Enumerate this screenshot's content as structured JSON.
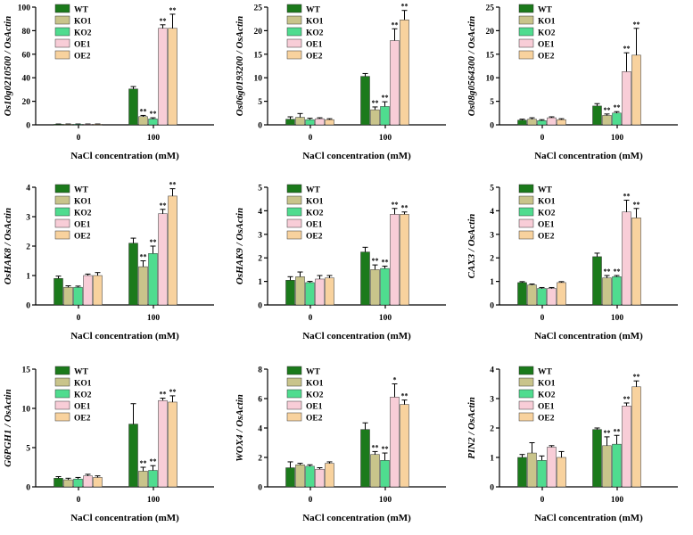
{
  "series_styles": [
    {
      "name": "WT",
      "color": "#1b7a1b"
    },
    {
      "name": "KO1",
      "color": "#c9c48b"
    },
    {
      "name": "KO2",
      "color": "#4fdc8f"
    },
    {
      "name": "OE1",
      "color": "#f8cdd7"
    },
    {
      "name": "OE2",
      "color": "#f8d29e"
    }
  ],
  "chart_data": [
    {
      "type": "bar",
      "ylabel": "Os10g0210500 / OsActin",
      "xlabel": "NaCl concentration (mM)",
      "categories": [
        "0",
        "100"
      ],
      "ylim": [
        0,
        100
      ],
      "yticks": [
        0,
        20,
        40,
        60,
        80,
        100
      ],
      "legend": [
        "WT",
        "KO1",
        "KO2",
        "OE1",
        "OE2"
      ],
      "series": [
        {
          "name": "WT",
          "values": [
            0.5,
            30.5
          ],
          "errors": [
            0.2,
            2.0
          ],
          "sig": [
            "",
            ""
          ]
        },
        {
          "name": "KO1",
          "values": [
            0.5,
            7
          ],
          "errors": [
            0.2,
            1.0
          ],
          "sig": [
            "",
            "**"
          ]
        },
        {
          "name": "KO2",
          "values": [
            0.5,
            5
          ],
          "errors": [
            0.2,
            1.0
          ],
          "sig": [
            "",
            "**"
          ]
        },
        {
          "name": "OE1",
          "values": [
            0.5,
            82
          ],
          "errors": [
            0.2,
            3.0
          ],
          "sig": [
            "",
            "**"
          ]
        },
        {
          "name": "OE2",
          "values": [
            0.5,
            82
          ],
          "errors": [
            0.2,
            12.0
          ],
          "sig": [
            "",
            "**"
          ]
        }
      ]
    },
    {
      "type": "bar",
      "ylabel": "Os06g0193200 / OsActin",
      "xlabel": "NaCl concentration (mM)",
      "categories": [
        "0",
        "100"
      ],
      "ylim": [
        0,
        25
      ],
      "yticks": [
        0,
        5,
        10,
        15,
        20,
        25
      ],
      "legend": [
        "WT",
        "KO1",
        "KO2",
        "OE1",
        "OE2"
      ],
      "series": [
        {
          "name": "WT",
          "values": [
            1.2,
            10.3
          ],
          "errors": [
            0.5,
            0.6
          ],
          "sig": [
            "",
            ""
          ]
        },
        {
          "name": "KO1",
          "values": [
            1.6,
            3.2
          ],
          "errors": [
            0.8,
            0.6
          ],
          "sig": [
            "",
            "**"
          ]
        },
        {
          "name": "KO2",
          "values": [
            1.1,
            3.9
          ],
          "errors": [
            0.3,
            1.0
          ],
          "sig": [
            "",
            "**"
          ]
        },
        {
          "name": "OE1",
          "values": [
            1.3,
            17.9
          ],
          "errors": [
            0.2,
            2.5
          ],
          "sig": [
            "",
            "**"
          ]
        },
        {
          "name": "OE2",
          "values": [
            1.1,
            22.3
          ],
          "errors": [
            0.2,
            2.0
          ],
          "sig": [
            "",
            "**"
          ]
        }
      ]
    },
    {
      "type": "bar",
      "ylabel": "Os08g0564300 / OsActin",
      "xlabel": "NaCl concentration (mM)",
      "categories": [
        "0",
        "100"
      ],
      "ylim": [
        0,
        25
      ],
      "yticks": [
        0,
        5,
        10,
        15,
        20,
        25
      ],
      "legend": [
        "WT",
        "KO1",
        "KO2",
        "OE1",
        "OE2"
      ],
      "series": [
        {
          "name": "WT",
          "values": [
            1.0,
            4.0
          ],
          "errors": [
            0.2,
            0.5
          ],
          "sig": [
            "",
            ""
          ]
        },
        {
          "name": "KO1",
          "values": [
            1.2,
            2.0
          ],
          "errors": [
            0.3,
            0.3
          ],
          "sig": [
            "",
            "**"
          ]
        },
        {
          "name": "KO2",
          "values": [
            0.9,
            2.5
          ],
          "errors": [
            0.2,
            0.3
          ],
          "sig": [
            "",
            "**"
          ]
        },
        {
          "name": "OE1",
          "values": [
            1.5,
            11.3
          ],
          "errors": [
            0.2,
            4.0
          ],
          "sig": [
            "",
            "**"
          ]
        },
        {
          "name": "OE2",
          "values": [
            1.1,
            14.8
          ],
          "errors": [
            0.2,
            5.7
          ],
          "sig": [
            "",
            "**"
          ]
        }
      ]
    },
    {
      "type": "bar",
      "ylabel": "OsHAK8 / OsActin",
      "xlabel": "NaCl concentration (mM)",
      "categories": [
        "0",
        "100"
      ],
      "ylim": [
        0,
        4
      ],
      "yticks": [
        0,
        1,
        2,
        3,
        4
      ],
      "legend": [
        "WT",
        "KO1",
        "KO2",
        "OE1",
        "OE2"
      ],
      "series": [
        {
          "name": "WT",
          "values": [
            0.9,
            2.1
          ],
          "errors": [
            0.08,
            0.17
          ],
          "sig": [
            "",
            ""
          ]
        },
        {
          "name": "KO1",
          "values": [
            0.6,
            1.3
          ],
          "errors": [
            0.05,
            0.2
          ],
          "sig": [
            "",
            "**"
          ]
        },
        {
          "name": "KO2",
          "values": [
            0.6,
            1.75
          ],
          "errors": [
            0.04,
            0.25
          ],
          "sig": [
            "",
            "**"
          ]
        },
        {
          "name": "OE1",
          "values": [
            1.0,
            3.1
          ],
          "errors": [
            0.05,
            0.15
          ],
          "sig": [
            "",
            "**"
          ]
        },
        {
          "name": "OE2",
          "values": [
            1.0,
            3.7
          ],
          "errors": [
            0.1,
            0.25
          ],
          "sig": [
            "",
            "**"
          ]
        }
      ]
    },
    {
      "type": "bar",
      "ylabel": "OsHAK9 / OsActin",
      "xlabel": "NaCl concentration (mM)",
      "categories": [
        "0",
        "100"
      ],
      "ylim": [
        0,
        5
      ],
      "yticks": [
        0,
        1,
        2,
        3,
        4,
        5
      ],
      "legend": [
        "WT",
        "KO1",
        "KO2",
        "OE1",
        "OE2"
      ],
      "series": [
        {
          "name": "WT",
          "values": [
            1.05,
            2.25
          ],
          "errors": [
            0.15,
            0.2
          ],
          "sig": [
            "",
            ""
          ]
        },
        {
          "name": "KO1",
          "values": [
            1.2,
            1.5
          ],
          "errors": [
            0.2,
            0.2
          ],
          "sig": [
            "",
            "**"
          ]
        },
        {
          "name": "KO2",
          "values": [
            0.95,
            1.55
          ],
          "errors": [
            0.05,
            0.1
          ],
          "sig": [
            "",
            "**"
          ]
        },
        {
          "name": "OE1",
          "values": [
            1.1,
            3.85
          ],
          "errors": [
            0.15,
            0.25
          ],
          "sig": [
            "",
            "**"
          ]
        },
        {
          "name": "OE2",
          "values": [
            1.15,
            3.85
          ],
          "errors": [
            0.1,
            0.1
          ],
          "sig": [
            "",
            "**"
          ]
        }
      ]
    },
    {
      "type": "bar",
      "ylabel": "CAX3 / OsActin",
      "xlabel": "NaCl concentration (mM)",
      "categories": [
        "0",
        "100"
      ],
      "ylim": [
        0,
        5
      ],
      "yticks": [
        0,
        1,
        2,
        3,
        4,
        5
      ],
      "legend": [
        "WT",
        "KO1",
        "KO2",
        "OE1",
        "OE2"
      ],
      "series": [
        {
          "name": "WT",
          "values": [
            0.95,
            2.05
          ],
          "errors": [
            0.04,
            0.15
          ],
          "sig": [
            "",
            ""
          ]
        },
        {
          "name": "KO1",
          "values": [
            0.85,
            1.15
          ],
          "errors": [
            0.04,
            0.1
          ],
          "sig": [
            "",
            "**"
          ]
        },
        {
          "name": "KO2",
          "values": [
            0.7,
            1.2
          ],
          "errors": [
            0.04,
            0.05
          ],
          "sig": [
            "",
            "**"
          ]
        },
        {
          "name": "OE1",
          "values": [
            0.7,
            3.95
          ],
          "errors": [
            0.04,
            0.5
          ],
          "sig": [
            "",
            "**"
          ]
        },
        {
          "name": "OE2",
          "values": [
            0.95,
            3.7
          ],
          "errors": [
            0.04,
            0.4
          ],
          "sig": [
            "",
            "**"
          ]
        }
      ]
    },
    {
      "type": "bar",
      "ylabel": "G6PGH1 / OsActin",
      "xlabel": "NaCl concentration (mM)",
      "categories": [
        "0",
        "100"
      ],
      "ylim": [
        0,
        15
      ],
      "yticks": [
        0,
        5,
        10,
        15
      ],
      "legend": [
        "WT",
        "KO1",
        "KO2",
        "OE1",
        "OE2"
      ],
      "series": [
        {
          "name": "WT",
          "values": [
            1.1,
            8.0
          ],
          "errors": [
            0.2,
            2.6
          ],
          "sig": [
            "",
            ""
          ]
        },
        {
          "name": "KO1",
          "values": [
            0.9,
            2.0
          ],
          "errors": [
            0.2,
            0.5
          ],
          "sig": [
            "",
            "**"
          ]
        },
        {
          "name": "KO2",
          "values": [
            1.0,
            2.1
          ],
          "errors": [
            0.2,
            0.6
          ],
          "sig": [
            "",
            "**"
          ]
        },
        {
          "name": "OE1",
          "values": [
            1.4,
            11.0
          ],
          "errors": [
            0.2,
            0.3
          ],
          "sig": [
            "",
            "**"
          ]
        },
        {
          "name": "OE2",
          "values": [
            1.2,
            10.8
          ],
          "errors": [
            0.2,
            0.8
          ],
          "sig": [
            "",
            "**"
          ]
        }
      ]
    },
    {
      "type": "bar",
      "ylabel": "WOX4 / OsActin",
      "xlabel": "NaCl concentration (mM)",
      "categories": [
        "0",
        "100"
      ],
      "ylim": [
        0,
        8
      ],
      "yticks": [
        0,
        2,
        4,
        6,
        8
      ],
      "legend": [
        "WT",
        "KO1",
        "KO2",
        "OE1",
        "OE2"
      ],
      "series": [
        {
          "name": "WT",
          "values": [
            1.3,
            3.9
          ],
          "errors": [
            0.4,
            0.45
          ],
          "sig": [
            "",
            ""
          ]
        },
        {
          "name": "KO1",
          "values": [
            1.5,
            2.2
          ],
          "errors": [
            0.1,
            0.2
          ],
          "sig": [
            "",
            "**"
          ]
        },
        {
          "name": "KO2",
          "values": [
            1.4,
            1.8
          ],
          "errors": [
            0.1,
            0.5
          ],
          "sig": [
            "",
            "**"
          ]
        },
        {
          "name": "OE1",
          "values": [
            1.2,
            6.1
          ],
          "errors": [
            0.1,
            0.9
          ],
          "sig": [
            "",
            "*"
          ]
        },
        {
          "name": "OE2",
          "values": [
            1.6,
            5.6
          ],
          "errors": [
            0.1,
            0.3
          ],
          "sig": [
            "",
            "**"
          ]
        }
      ]
    },
    {
      "type": "bar",
      "ylabel": "PIN2 / OsActin",
      "xlabel": "NaCl concentration (mM)",
      "categories": [
        "0",
        "100"
      ],
      "ylim": [
        0,
        4
      ],
      "yticks": [
        0,
        1,
        2,
        3,
        4
      ],
      "legend": [
        "WT",
        "KO1",
        "KO2",
        "OE1",
        "OE2"
      ],
      "series": [
        {
          "name": "WT",
          "values": [
            1.0,
            1.95
          ],
          "errors": [
            0.1,
            0.05
          ],
          "sig": [
            "",
            ""
          ]
        },
        {
          "name": "KO1",
          "values": [
            1.15,
            1.4
          ],
          "errors": [
            0.35,
            0.3
          ],
          "sig": [
            "",
            "**"
          ]
        },
        {
          "name": "KO2",
          "values": [
            0.9,
            1.45
          ],
          "errors": [
            0.15,
            0.3
          ],
          "sig": [
            "",
            "**"
          ]
        },
        {
          "name": "OE1",
          "values": [
            1.35,
            2.75
          ],
          "errors": [
            0.05,
            0.1
          ],
          "sig": [
            "",
            "**"
          ]
        },
        {
          "name": "OE2",
          "values": [
            1.0,
            3.4
          ],
          "errors": [
            0.2,
            0.2
          ],
          "sig": [
            "",
            "**"
          ]
        }
      ]
    }
  ]
}
